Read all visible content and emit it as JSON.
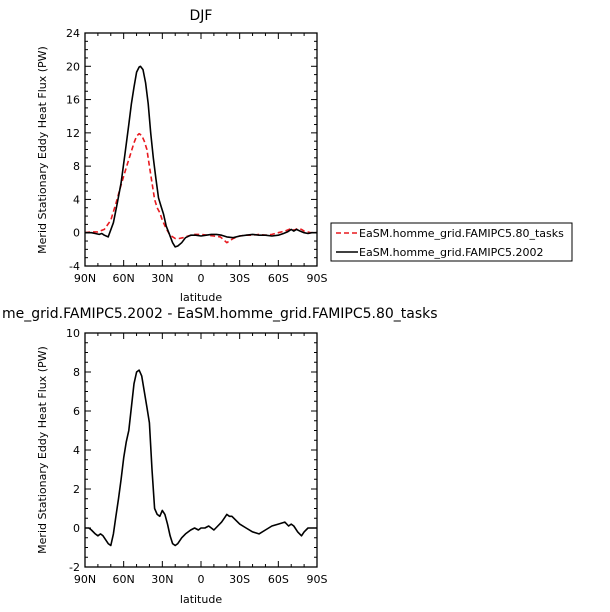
{
  "chart_data": [
    {
      "type": "line",
      "title": "DJF",
      "xlabel": "latitude",
      "ylabel": "Merid Stationary Eddy Heat Flux (PW)",
      "xlim": [
        -90,
        90
      ],
      "ylim": [
        -4,
        24
      ],
      "xticks": [
        -90,
        -60,
        -30,
        0,
        30,
        60,
        90
      ],
      "xtick_labels": [
        "90N",
        "60N",
        "30N",
        "0",
        "30S",
        "60S",
        "90S"
      ],
      "yticks": [
        -4,
        0,
        4,
        8,
        12,
        16,
        20,
        24
      ],
      "ytick_labels": [
        "-4",
        "0",
        "4",
        "8",
        "12",
        "16",
        "20",
        "24"
      ],
      "grid": false,
      "legend_placement": "outside-right",
      "series": [
        {
          "name": "EaSM.homme_grid.FAMIPC5.80_tasks",
          "color": "#e8191f",
          "dash": "dashed",
          "x": [
            -90,
            -85,
            -80,
            -75,
            -70,
            -66,
            -63,
            -60,
            -57,
            -54,
            -52,
            -50,
            -48,
            -46,
            -44,
            -42,
            -40,
            -38,
            -36,
            -34,
            -32,
            -30,
            -27,
            -24,
            -20,
            -17,
            -14,
            -10,
            -5,
            0,
            5,
            10,
            15,
            18,
            20,
            22,
            25,
            30,
            35,
            40,
            45,
            50,
            55,
            60,
            65,
            70,
            72,
            75,
            78,
            80,
            85,
            90
          ],
          "values": [
            0,
            0.1,
            0.1,
            0.4,
            1.5,
            3.5,
            5.2,
            6.8,
            8.3,
            9.8,
            10.8,
            11.6,
            11.9,
            11.7,
            11.0,
            10.0,
            8.0,
            6.0,
            4.0,
            3.0,
            2.4,
            1.5,
            0.5,
            -0.3,
            -0.7,
            -0.7,
            -0.6,
            -0.4,
            -0.2,
            -0.2,
            -0.3,
            -0.4,
            -0.5,
            -0.9,
            -1.2,
            -1.0,
            -0.7,
            -0.4,
            -0.3,
            -0.3,
            -0.2,
            -0.3,
            -0.2,
            0,
            0.2,
            0.5,
            0.3,
            0.5,
            0.4,
            0.2,
            0,
            0
          ]
        },
        {
          "name": "EaSM.homme_grid.FAMIPC5.2002",
          "color": "#000000",
          "dash": "solid",
          "x": [
            -90,
            -85,
            -82,
            -79,
            -77,
            -75,
            -72,
            -68,
            -65,
            -62,
            -59,
            -56,
            -54,
            -52,
            -50,
            -48,
            -47,
            -45,
            -43,
            -41,
            -39,
            -37,
            -35,
            -33,
            -31,
            -29,
            -27,
            -25,
            -22,
            -20,
            -18,
            -15,
            -12,
            -8,
            -4,
            0,
            4,
            8,
            12,
            16,
            20,
            25,
            30,
            35,
            40,
            45,
            50,
            55,
            60,
            64,
            67,
            70,
            72,
            74,
            77,
            80,
            83,
            86,
            90
          ],
          "values": [
            0,
            0,
            -0.1,
            -0.2,
            -0.1,
            -0.3,
            -0.5,
            1.2,
            3.5,
            6.0,
            9.5,
            13.0,
            15.5,
            17.5,
            19.3,
            19.9,
            20.0,
            19.6,
            18.0,
            15.5,
            12.0,
            9.0,
            6.5,
            4.2,
            3.2,
            2.2,
            0.8,
            0,
            -1.2,
            -1.7,
            -1.6,
            -1.2,
            -0.6,
            -0.3,
            -0.3,
            -0.4,
            -0.3,
            -0.2,
            -0.2,
            -0.3,
            -0.5,
            -0.6,
            -0.4,
            -0.3,
            -0.2,
            -0.3,
            -0.3,
            -0.4,
            -0.3,
            -0.1,
            0.1,
            0.4,
            0.2,
            0.4,
            0.2,
            0,
            -0.1,
            0,
            0
          ]
        }
      ]
    },
    {
      "type": "line",
      "title": "me_grid.FAMIPC5.2002 - EaSM.homme_grid.FAMIPC5.80_tasks",
      "xlabel": "latitude",
      "ylabel": "Merid Stationary Eddy Heat Flux (PW)",
      "xlim": [
        -90,
        90
      ],
      "ylim": [
        -2,
        10
      ],
      "xticks": [
        -90,
        -60,
        -30,
        0,
        30,
        60,
        90
      ],
      "xtick_labels": [
        "90N",
        "60N",
        "30N",
        "0",
        "30S",
        "60S",
        "90S"
      ],
      "yticks": [
        -2,
        0,
        2,
        4,
        6,
        8,
        10
      ],
      "ytick_labels": [
        "-2",
        "0",
        "2",
        "4",
        "6",
        "8",
        "10"
      ],
      "grid": false,
      "series": [
        {
          "color": "#000000",
          "dash": "solid",
          "x": [
            -90,
            -87,
            -85,
            -82,
            -80,
            -78,
            -76,
            -74,
            -72,
            -70,
            -68,
            -66,
            -64,
            -62,
            -60,
            -58,
            -56,
            -54,
            -52,
            -50,
            -48,
            -46,
            -44,
            -42,
            -40,
            -38,
            -36,
            -34,
            -32,
            -30,
            -28,
            -26,
            -24,
            -22,
            -20,
            -18,
            -15,
            -12,
            -8,
            -5,
            -2,
            0,
            3,
            6,
            10,
            13,
            16,
            18,
            20,
            22,
            24,
            27,
            30,
            35,
            40,
            45,
            50,
            55,
            60,
            65,
            68,
            70,
            72,
            75,
            78,
            80,
            83,
            86,
            90
          ],
          "values": [
            0,
            0,
            -0.1,
            -0.3,
            -0.4,
            -0.3,
            -0.4,
            -0.6,
            -0.8,
            -0.9,
            -0.3,
            0.6,
            1.5,
            2.5,
            3.6,
            4.4,
            5.0,
            6.2,
            7.4,
            8.0,
            8.1,
            7.8,
            7.0,
            6.2,
            5.4,
            3.0,
            1.0,
            0.7,
            0.6,
            0.9,
            0.7,
            0.2,
            -0.4,
            -0.8,
            -0.9,
            -0.8,
            -0.5,
            -0.3,
            -0.1,
            0,
            -0.1,
            0,
            0,
            0.1,
            -0.1,
            0.1,
            0.3,
            0.5,
            0.7,
            0.6,
            0.6,
            0.4,
            0.2,
            0,
            -0.2,
            -0.3,
            -0.1,
            0.1,
            0.2,
            0.3,
            0.1,
            0.2,
            0.1,
            -0.2,
            -0.4,
            -0.2,
            0,
            0,
            0
          ]
        }
      ]
    }
  ]
}
